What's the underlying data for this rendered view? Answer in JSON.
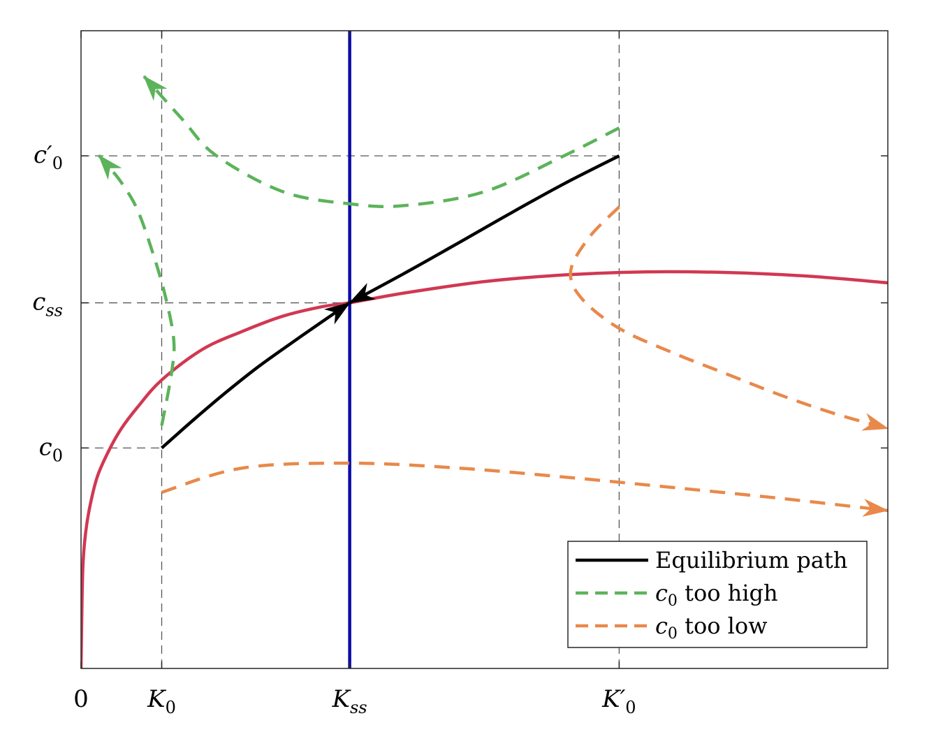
{
  "chart_data": {
    "type": "line",
    "title": "",
    "xlabel": "",
    "ylabel": "",
    "description": "Phase diagram of capital K and consumption c (Ramsey model)",
    "xlim": [
      0,
      10
    ],
    "ylim": [
      0,
      10.5
    ],
    "grid": false,
    "x_ticks": [
      {
        "value": 0,
        "label": "0",
        "main": "0",
        "sub": ""
      },
      {
        "value": 1,
        "label": "K_0",
        "main": "K",
        "sub": "0"
      },
      {
        "value": 3.33,
        "label": "K_ss",
        "main": "K",
        "sub": "ss"
      },
      {
        "value": 6.67,
        "label": "K_0'",
        "main": "K′",
        "sub": "0"
      }
    ],
    "y_ticks": [
      {
        "value": 3.63,
        "label": "c_0",
        "main": "c",
        "sub": "0"
      },
      {
        "value": 6.02,
        "label": "c_ss",
        "main": "c",
        "sub": "ss"
      },
      {
        "value": 8.44,
        "label": "c_0'",
        "main": "c′",
        "sub": "0"
      }
    ],
    "reference_lines": [
      {
        "name": "K0-guide",
        "orientation": "vertical",
        "x": 1
      },
      {
        "name": "K0prime-guide",
        "orientation": "vertical",
        "x": 6.67
      },
      {
        "name": "c0-guide",
        "orientation": "horizontal",
        "y": 3.63,
        "x_end": 1
      },
      {
        "name": "css-guide",
        "orientation": "horizontal",
        "y": 6.02,
        "x_end": 3.33
      },
      {
        "name": "c0prime-guide",
        "orientation": "horizontal",
        "y": 8.44,
        "x_end": 6.67
      }
    ],
    "series": [
      {
        "name": "dK=0 locus",
        "color": "#d13852",
        "style": "solid",
        "in_legend": false,
        "x": [
          0,
          0.02,
          0.05,
          0.1,
          0.2,
          0.35,
          0.5,
          0.7,
          1.0,
          1.5,
          2.0,
          2.5,
          3.0,
          3.33,
          4.0,
          5.0,
          6.0,
          7.0,
          8.0,
          9.0,
          10.0
        ],
        "y": [
          0,
          1.55,
          2.15,
          2.6,
          3.15,
          3.6,
          3.95,
          4.3,
          4.75,
          5.25,
          5.55,
          5.8,
          5.96,
          6.02,
          6.18,
          6.37,
          6.48,
          6.53,
          6.52,
          6.46,
          6.35
        ]
      },
      {
        "name": "dc=0 locus",
        "color": "#0a0aa8",
        "style": "solid",
        "in_legend": false,
        "x": [
          3.33,
          3.33
        ],
        "y": [
          0,
          10.5
        ]
      },
      {
        "name": "Equilibrium path (from K_0)",
        "color": "#000000",
        "style": "solid",
        "in_legend": false,
        "arrow": "end",
        "x": [
          1.0,
          1.4,
          1.8,
          2.2,
          2.6,
          3.0,
          3.33
        ],
        "y": [
          3.63,
          4.1,
          4.55,
          4.97,
          5.35,
          5.72,
          6.02
        ]
      },
      {
        "name": "Equilibrium path (from K_0')",
        "color": "#000000",
        "style": "solid",
        "in_legend": false,
        "arrow": "end",
        "x": [
          6.67,
          6.0,
          5.33,
          4.67,
          4.0,
          3.33
        ],
        "y": [
          8.44,
          7.99,
          7.5,
          7.0,
          6.5,
          6.02
        ]
      },
      {
        "name": "c_0 too high (from K_0)",
        "color": "#5cb35a",
        "style": "dashed",
        "in_legend": false,
        "arrow": "end",
        "x": [
          1.0,
          1.12,
          1.15,
          1.05,
          0.9,
          0.7,
          0.5,
          0.35,
          0.22
        ],
        "y": [
          4.0,
          4.85,
          5.4,
          6.1,
          6.8,
          7.55,
          8.0,
          8.25,
          8.45
        ]
      },
      {
        "name": "c_0 too high (from K_0')",
        "color": "#5cb35a",
        "style": "dashed",
        "in_legend": false,
        "arrow": "end",
        "x": [
          6.67,
          6.0,
          5.0,
          4.0,
          3.33,
          2.5,
          1.67,
          1.25,
          0.78
        ],
        "y": [
          8.9,
          8.45,
          7.85,
          7.62,
          7.65,
          7.85,
          8.45,
          9.05,
          9.75
        ]
      },
      {
        "name": "c_0 too low (from K_0)",
        "color": "#e8894a",
        "style": "dashed",
        "in_legend": false,
        "arrow": "end",
        "x": [
          1.0,
          2.0,
          3.33,
          4.67,
          6.0,
          7.33,
          8.67,
          10.0
        ],
        "y": [
          2.9,
          3.3,
          3.38,
          3.3,
          3.15,
          2.98,
          2.8,
          2.6
        ]
      },
      {
        "name": "c_0 too low (from K_0')",
        "color": "#e8894a",
        "style": "dashed",
        "in_legend": false,
        "arrow": "end",
        "x": [
          6.67,
          6.3,
          6.07,
          6.2,
          6.67,
          7.33,
          8.0,
          8.67,
          9.33,
          10.0
        ],
        "y": [
          7.6,
          7.1,
          6.55,
          6.1,
          5.6,
          5.2,
          4.85,
          4.5,
          4.2,
          3.95
        ]
      }
    ],
    "legend": {
      "position": "bottom-right",
      "entries": [
        {
          "label": "Equilibrium path",
          "color": "#000000",
          "style": "solid",
          "main": "Equilibrium path",
          "sym": "",
          "sub": ""
        },
        {
          "label": "c_0 too high",
          "color": "#5cb35a",
          "style": "dashed",
          "main": " too high",
          "sym": "c",
          "sub": "0"
        },
        {
          "label": "c_0 too low",
          "color": "#e8894a",
          "style": "dashed",
          "main": " too low",
          "sym": "c",
          "sub": "0"
        }
      ]
    }
  }
}
